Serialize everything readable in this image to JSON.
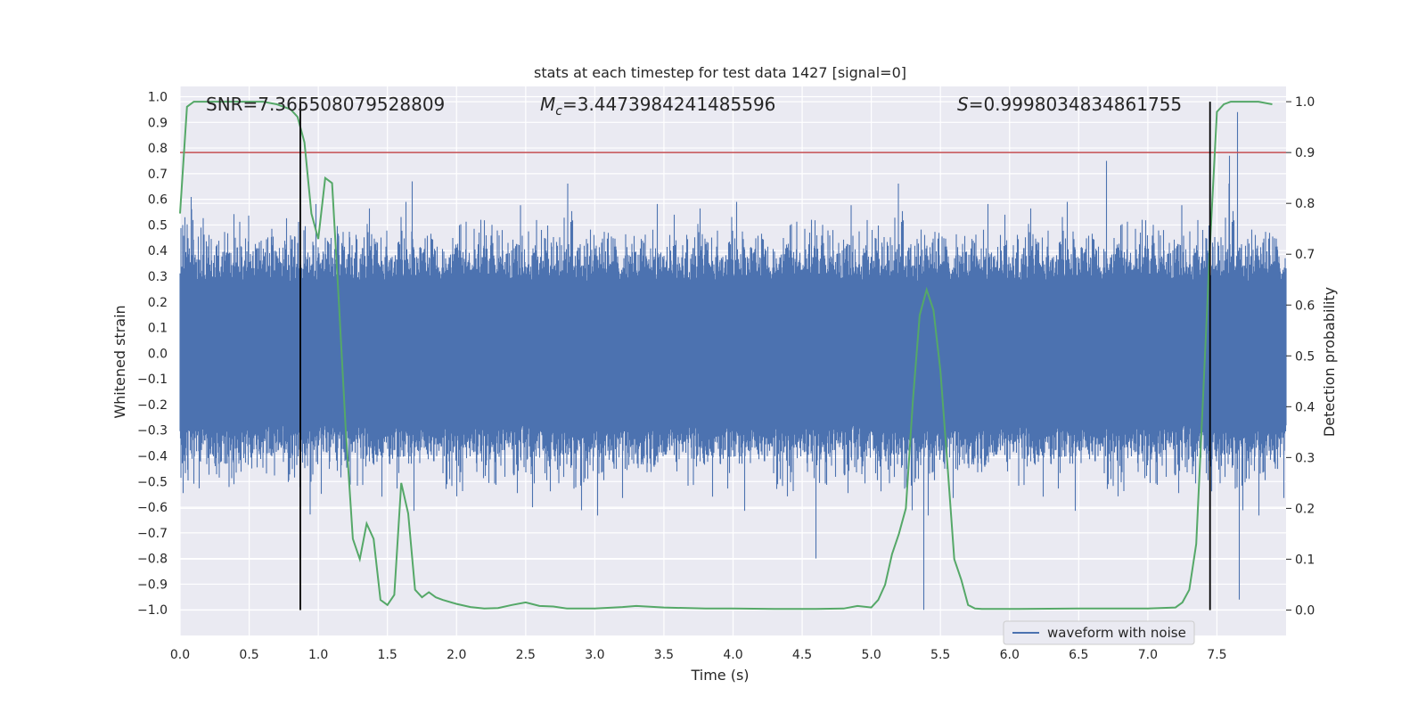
{
  "chart_data": {
    "type": "line",
    "title": "stats at each timestep for test data 1427 [signal=0]",
    "xlabel": "Time (s)",
    "ylabel_left": "Whitened strain",
    "ylabel_right": "Detection probability",
    "xlim": [
      0,
      8.0
    ],
    "ylim_left": [
      -1.1,
      1.04
    ],
    "ylim_right": [
      -0.05,
      1.03
    ],
    "x_ticks": [
      0.0,
      0.5,
      1.0,
      1.5,
      2.0,
      2.5,
      3.0,
      3.5,
      4.0,
      4.5,
      5.0,
      5.5,
      6.0,
      6.5,
      7.0,
      7.5
    ],
    "x_tick_labels": [
      "0.0",
      "0.5",
      "1.0",
      "1.5",
      "2.0",
      "2.5",
      "3.0",
      "3.5",
      "4.0",
      "4.5",
      "5.0",
      "5.5",
      "6.0",
      "6.5",
      "7.0",
      "7.5"
    ],
    "left_ticks": [
      1.0,
      0.9,
      0.8,
      0.7,
      0.6,
      0.5,
      0.4,
      0.3,
      0.2,
      0.1,
      0.0,
      -0.1,
      -0.2,
      -0.3,
      -0.4,
      -0.5,
      -0.6,
      -0.7,
      -0.8,
      -0.9,
      -1.0
    ],
    "left_tick_labels": [
      "1.0",
      "0.9",
      "0.8",
      "0.7",
      "0.6",
      "0.5",
      "0.4",
      "0.3",
      "0.2",
      "0.1",
      "0.0",
      "−0.1",
      "−0.2",
      "−0.3",
      "−0.4",
      "−0.5",
      "−0.6",
      "−0.7",
      "−0.8",
      "−0.9",
      "−1.0"
    ],
    "right_ticks": [
      1.0,
      0.9,
      0.8,
      0.7,
      0.6,
      0.5,
      0.4,
      0.3,
      0.2,
      0.1,
      0.0
    ],
    "right_tick_labels": [
      "1.0",
      "0.9",
      "0.8",
      "0.7",
      "0.6",
      "0.5",
      "0.4",
      "0.3",
      "0.2",
      "0.1",
      "0.0"
    ],
    "grid": true,
    "legend_position": "lower-right",
    "annotations": {
      "snr": "SNR=7.365508079528809",
      "mc_symbol": "M",
      "mc_sub": "c",
      "mc_value": "=3.4473984241485596",
      "s_symbol": "S",
      "s_value": "=0.9998034834861755"
    },
    "threshold": {
      "value": 0.9,
      "axis": "right",
      "color": "#c44e52"
    },
    "vertical_markers": [
      0.87,
      7.45
    ],
    "series": [
      {
        "name": "waveform with noise",
        "axis": "left",
        "color": "#4c72b0",
        "description_range": [
          -1.0,
          0.94
        ],
        "sample_rate_hz": 2048,
        "typical_envelope": 0.45,
        "notable_spikes": [
          {
            "x": 5.38,
            "y": -1.0
          },
          {
            "x": 6.7,
            "y": 0.75
          },
          {
            "x": 7.65,
            "y": 0.94
          },
          {
            "x": 7.66,
            "y": -0.96
          },
          {
            "x": 7.59,
            "y": 0.77
          },
          {
            "x": 7.45,
            "y": 0.62
          },
          {
            "x": 4.6,
            "y": -0.8
          },
          {
            "x": 2.55,
            "y": -0.6
          },
          {
            "x": 1.68,
            "y": 0.67
          }
        ]
      },
      {
        "name": "detection probability",
        "axis": "right",
        "color": "#55a868",
        "x": [
          0.0,
          0.05,
          0.1,
          0.2,
          0.3,
          0.4,
          0.5,
          0.6,
          0.7,
          0.8,
          0.85,
          0.9,
          0.95,
          1.0,
          1.05,
          1.1,
          1.15,
          1.2,
          1.25,
          1.3,
          1.35,
          1.4,
          1.45,
          1.5,
          1.55,
          1.6,
          1.65,
          1.7,
          1.75,
          1.8,
          1.85,
          1.9,
          2.0,
          2.1,
          2.2,
          2.3,
          2.4,
          2.5,
          2.6,
          2.7,
          2.8,
          3.0,
          3.2,
          3.3,
          3.5,
          3.8,
          4.0,
          4.3,
          4.6,
          4.8,
          4.9,
          5.0,
          5.05,
          5.1,
          5.15,
          5.2,
          5.25,
          5.3,
          5.35,
          5.4,
          5.45,
          5.5,
          5.55,
          5.6,
          5.65,
          5.7,
          5.75,
          5.8,
          6.0,
          6.5,
          7.0,
          7.2,
          7.25,
          7.3,
          7.35,
          7.4,
          7.45,
          7.5,
          7.55,
          7.6,
          7.7,
          7.8,
          7.9
        ],
        "values": [
          0.78,
          0.99,
          1.0,
          1.0,
          1.0,
          1.0,
          1.0,
          1.0,
          0.995,
          0.985,
          0.97,
          0.92,
          0.78,
          0.73,
          0.85,
          0.84,
          0.6,
          0.35,
          0.14,
          0.1,
          0.17,
          0.14,
          0.02,
          0.01,
          0.03,
          0.25,
          0.19,
          0.04,
          0.025,
          0.035,
          0.025,
          0.02,
          0.012,
          0.006,
          0.003,
          0.004,
          0.01,
          0.015,
          0.008,
          0.007,
          0.003,
          0.003,
          0.006,
          0.008,
          0.005,
          0.003,
          0.003,
          0.002,
          0.002,
          0.003,
          0.008,
          0.005,
          0.02,
          0.05,
          0.11,
          0.15,
          0.2,
          0.41,
          0.58,
          0.63,
          0.59,
          0.47,
          0.29,
          0.1,
          0.06,
          0.01,
          0.003,
          0.002,
          0.002,
          0.003,
          0.003,
          0.005,
          0.015,
          0.04,
          0.13,
          0.42,
          0.72,
          0.98,
          0.995,
          1.0,
          1.0,
          1.0,
          0.995
        ]
      }
    ]
  }
}
